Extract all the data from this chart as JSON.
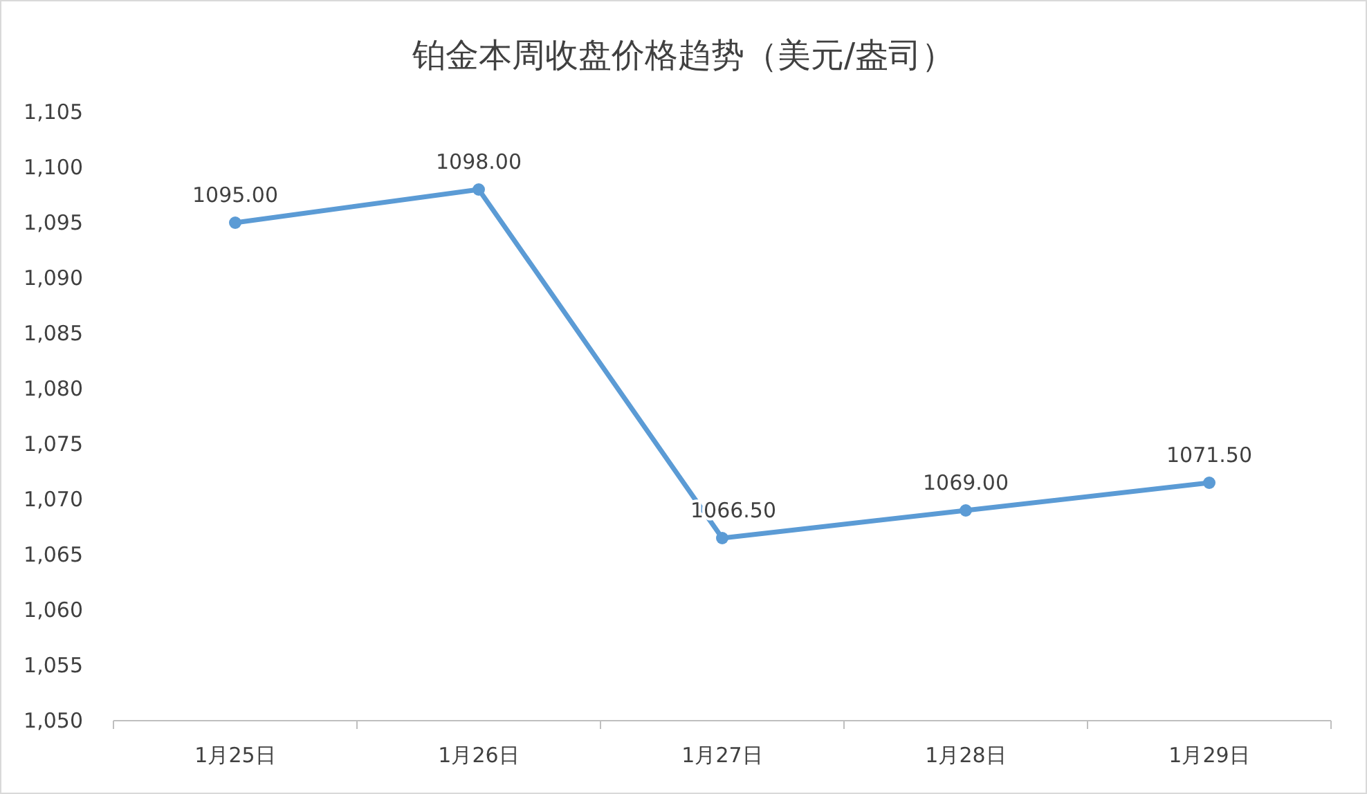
{
  "chart_data": {
    "type": "line",
    "title": "铂金本周收盘价格趋势（美元/盎司）",
    "categories": [
      "1月25日",
      "1月26日",
      "1月27日",
      "1月28日",
      "1月29日"
    ],
    "series": [
      {
        "color": "#5b9bd5",
        "values": [
          1095.0,
          1098.0,
          1066.5,
          1069.0,
          1071.5
        ],
        "value_labels": [
          "1095.00",
          "1098.00",
          "1066.50",
          "1069.00",
          "1071.50"
        ]
      }
    ],
    "ylim": [
      1050,
      1105
    ],
    "yticks": [
      {
        "value": 1050,
        "label": "1,050"
      },
      {
        "value": 1055,
        "label": "1,055"
      },
      {
        "value": 1060,
        "label": "1,060"
      },
      {
        "value": 1065,
        "label": "1,065"
      },
      {
        "value": 1070,
        "label": "1,070"
      },
      {
        "value": 1075,
        "label": "1,075"
      },
      {
        "value": 1080,
        "label": "1,080"
      },
      {
        "value": 1085,
        "label": "1,085"
      },
      {
        "value": 1090,
        "label": "1,090"
      },
      {
        "value": 1095,
        "label": "1,095"
      },
      {
        "value": 1100,
        "label": "1,100"
      },
      {
        "value": 1105,
        "label": "1,105"
      }
    ],
    "marker": "circle"
  }
}
